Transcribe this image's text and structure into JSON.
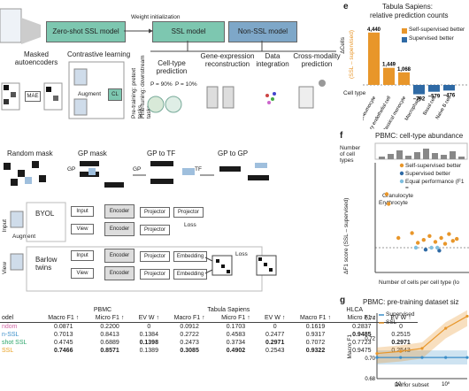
{
  "diagram": {
    "top": {
      "zero_shot_model": "Zero-shot SSL model",
      "weight_init": "Weight initialization",
      "ssl_model": "SSL model",
      "nonssl_model": "Non-SSL model",
      "masked_autoencoders": "Masked autoencoders",
      "contrastive_learning": "Contrastive learning",
      "mae": "MAE",
      "augment": "Augment",
      "cl": "CL",
      "pretraining_tasks": "Pre-training: pretext tasks",
      "finetuning_tasks": "Fine-tuning: downstream tasks",
      "tasks": [
        "Cell-type prediction",
        "Gene-expression reconstruction",
        "Data integration",
        "Cross-modality prediction"
      ],
      "p90": "P = 90%",
      "p10": "P = 10%"
    },
    "masks": [
      "Random mask",
      "GP mask",
      "GP to TF",
      "GP to GP"
    ],
    "mask_side": {
      "gp": "GP",
      "tf": "TF"
    },
    "contrastive": {
      "byol": "BYOL",
      "barlow": "Barlow twins",
      "input": "Input",
      "view": "View",
      "augment": "Augment",
      "encoder": "Encoder",
      "projector": "Projector",
      "embedding": "Embedding",
      "loss": "Loss"
    }
  },
  "table": {
    "groups": [
      "PBMC",
      "Tabula Sapiens",
      "HLCA"
    ],
    "model_header": "odel",
    "columns": [
      "Macro F1 ↑",
      "Micro F1 ↑",
      "EV W ↑"
    ],
    "rows": [
      {
        "name": "ndom",
        "color": "#d46ba8",
        "values": [
          "0.0871",
          "0.2200",
          "0",
          "0.0912",
          "0.1703",
          "0",
          "0.1619",
          "0.2837",
          "0"
        ],
        "bold": []
      },
      {
        "name": "n-SSL",
        "color": "#3a8ec9",
        "values": [
          "0.7013",
          "0.8413",
          "0.1384",
          "0.2722",
          "0.4583",
          "0.2477",
          "0.9317",
          "0.9485",
          "0.2515"
        ],
        "bold": [
          7
        ]
      },
      {
        "name": "shot SSL",
        "color": "#2aa56a",
        "values": [
          "0.4745",
          "0.6889",
          "0.1398",
          "0.2473",
          "0.3734",
          "0.2971",
          "0.7072",
          "0.7723",
          "0.2971"
        ],
        "bold": [
          2,
          5,
          8
        ]
      },
      {
        "name": "SSL",
        "color": "#e8a020",
        "values": [
          "0.7466",
          "0.8571",
          "0.1389",
          "0.3085",
          "0.4902",
          "0.2543",
          "0.9322",
          "0.9475",
          "0.2543"
        ],
        "bold": [
          0,
          1,
          3,
          4,
          6
        ]
      }
    ]
  },
  "panel_e": {
    "letter": "e",
    "title": "Tabula Sapiens:",
    "subtitle": "relative prediction counts",
    "ylabel_top": "ΔCells",
    "ylabel_bottom": "(SSL – supervised)",
    "xlabel": "Cell type",
    "legend": [
      {
        "label": "Self-supervised better",
        "color": "#e8962a"
      },
      {
        "label": "Supervised better",
        "color": "#2f6aa5"
      }
    ]
  },
  "chart_data": [
    {
      "type": "bar",
      "categories": [
        "Type I pneumocyte",
        "Capillary endothelial cell",
        "Classical monocyte",
        "Macrophage",
        "Basal cell",
        "Naive B cell"
      ],
      "values": [
        4440,
        1449,
        1068,
        -792,
        -579,
        -476
      ],
      "data_labels": [
        "4,440",
        "1,449",
        "1,068",
        "–792",
        "–579",
        "–476"
      ]
    },
    {
      "type": "scatter",
      "title": "PBMC: cell-type abundance",
      "xlabel": "Number of cells per cell type (lo",
      "ylabel_top": "Number of cell types",
      "ylabel": "ΔF1 score (SSL – supervised)",
      "annotations": [
        "Granulocyte",
        "Erythrocyte"
      ],
      "legend": [
        {
          "label": "Self-supervised better",
          "color": "#e8962a"
        },
        {
          "label": "Supervised better",
          "color": "#2f6aa5"
        },
        {
          "label": "Equal performance (F1 =",
          "color": "#7fbfe0"
        }
      ],
      "series": [
        {
          "name": "Self-supervised better",
          "points": [
            [
              -3.5,
              0.55
            ],
            [
              -3.4,
              0.45
            ],
            [
              -2.9,
              0.1
            ],
            [
              -2.2,
              0.15
            ],
            [
              -1.9,
              0.05
            ],
            [
              -1.6,
              0.08
            ],
            [
              -1.3,
              0.12
            ],
            [
              -1.0,
              0.06
            ],
            [
              -0.7,
              0.1
            ],
            [
              -0.5,
              0.04
            ],
            [
              -0.3,
              0.14
            ],
            [
              -0.1,
              0.07
            ],
            [
              0.1,
              0.09
            ]
          ]
        },
        {
          "name": "Supervised better",
          "points": [
            [
              -1.5,
              -0.02
            ],
            [
              -0.8,
              -0.03
            ]
          ]
        },
        {
          "name": "Equal performance (F1 =",
          "points": [
            [
              -2.0,
              0.0
            ],
            [
              -1.2,
              0.0
            ],
            [
              -0.9,
              0.0
            ]
          ]
        }
      ]
    },
    {
      "type": "line",
      "title": "PBMC: pre-training dataset siz",
      "xlabel": "Donor subset",
      "ylabel": "Macro F1",
      "y_ticks": [
        "0.74",
        "0.72",
        "0.70",
        "0.68"
      ],
      "x_ticks": [
        "10⁻¹",
        "10⁰"
      ],
      "ylim": [
        0.68,
        0.745
      ],
      "series": [
        {
          "name": "Supervised",
          "color": "#3a8ec9",
          "x": [
            0.03,
            0.1,
            0.3,
            1.0,
            3.0
          ],
          "y": [
            0.701,
            0.701,
            0.701,
            0.701,
            0.701
          ]
        },
        {
          "name": "SSL",
          "color": "#e8962a",
          "x": [
            0.03,
            0.1,
            0.3,
            1.0,
            3.0
          ],
          "y": [
            0.705,
            0.707,
            0.71,
            0.73,
            0.742
          ]
        }
      ]
    }
  ],
  "panel_f": {
    "letter": "f"
  },
  "panel_g": {
    "letter": "g"
  }
}
